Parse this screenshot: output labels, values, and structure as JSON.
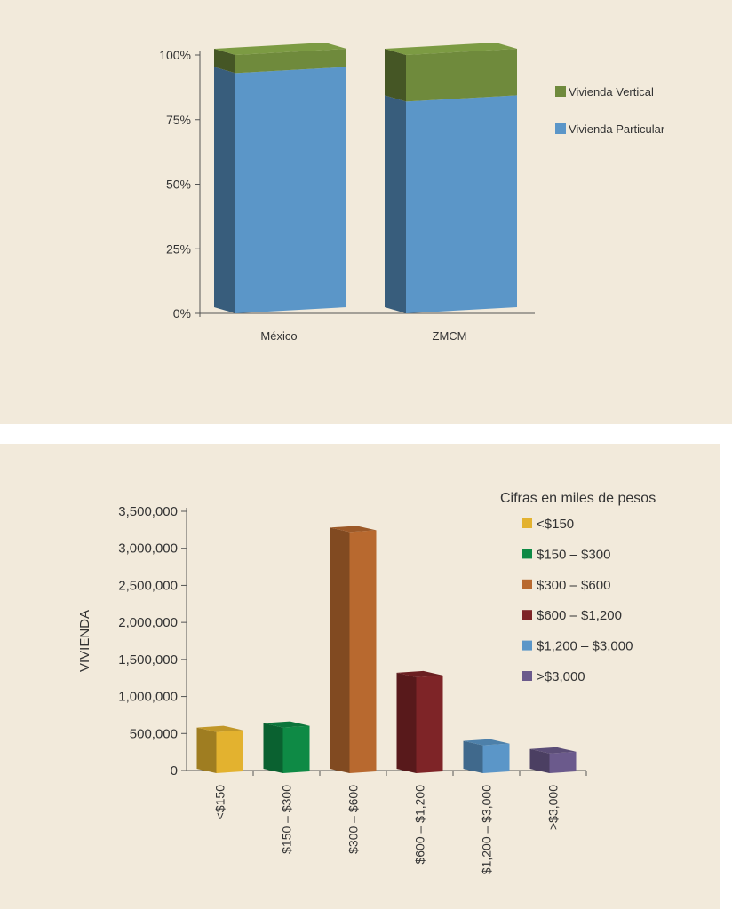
{
  "chart_data": [
    {
      "type": "bar",
      "stacked": true,
      "percent": true,
      "categories": [
        "México",
        "ZMCM"
      ],
      "series": [
        {
          "name": "Vivienda Particular",
          "values": [
            93,
            82
          ],
          "color": "#5b96c8"
        },
        {
          "name": "Vivienda Vertical",
          "values": [
            7,
            18
          ],
          "color": "#6f8a3c"
        }
      ],
      "y_ticks": [
        "0%",
        "25%",
        "50%",
        "75%",
        "100%"
      ],
      "ylim": [
        0,
        100
      ],
      "legend_position": "right"
    },
    {
      "type": "bar",
      "categories": [
        "<$150",
        "$150 – $300",
        "$300 – $600",
        "$600 – $1,200",
        "$1,200 – $3,000",
        ">$3,000"
      ],
      "values": [
        520000,
        580000,
        3220000,
        1260000,
        340000,
        230000
      ],
      "colors": [
        "#e3b22f",
        "#0e8a45",
        "#b8692f",
        "#7e2427",
        "#5b96c8",
        "#6b5a8c"
      ],
      "ylabel": "VIVIENDA",
      "ylim": [
        0,
        3500000
      ],
      "y_ticks": [
        "0",
        "500,000",
        "1,000,000",
        "1,500,000",
        "2,000,000",
        "2,500,000",
        "3,000,000",
        "3,500,000"
      ],
      "legend_title": "Cifras en miles de pesos",
      "legend_position": "top-right"
    }
  ]
}
